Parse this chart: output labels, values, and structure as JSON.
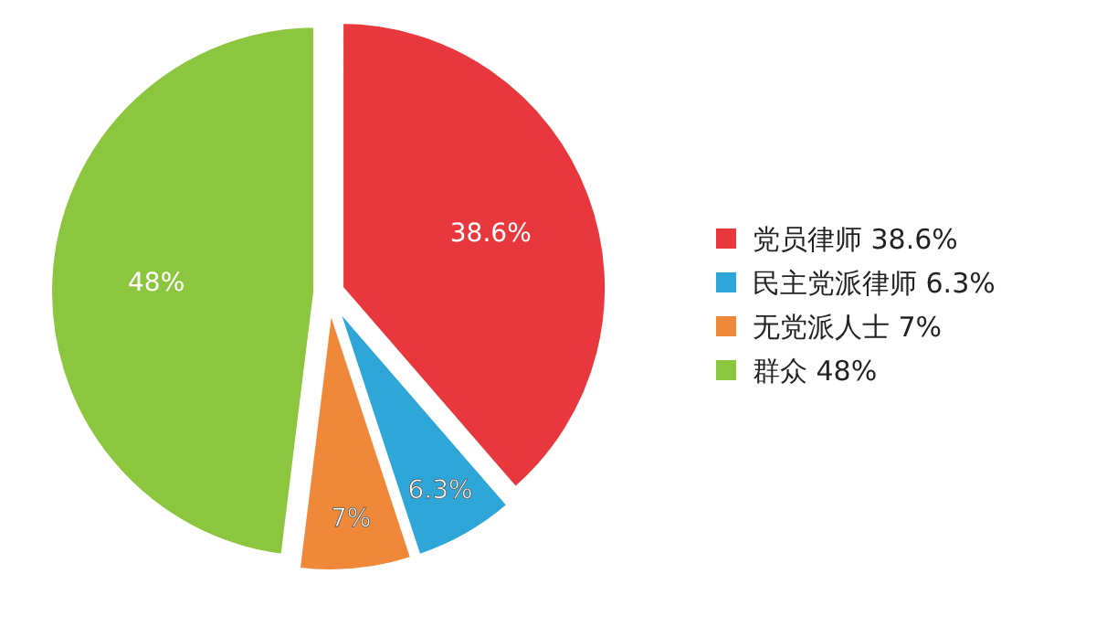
{
  "chart_data": {
    "type": "pie",
    "categories": [
      "党员律师",
      "民主党派律师",
      "无党派人士",
      "群众"
    ],
    "values": [
      38.6,
      6.3,
      7,
      48
    ],
    "value_labels": [
      "38.6%",
      "6.3%",
      "7%",
      "48%"
    ],
    "colors": [
      "#e8383d",
      "#2ea7d8",
      "#f0883a",
      "#8cc63f"
    ],
    "legend": "right"
  }
}
